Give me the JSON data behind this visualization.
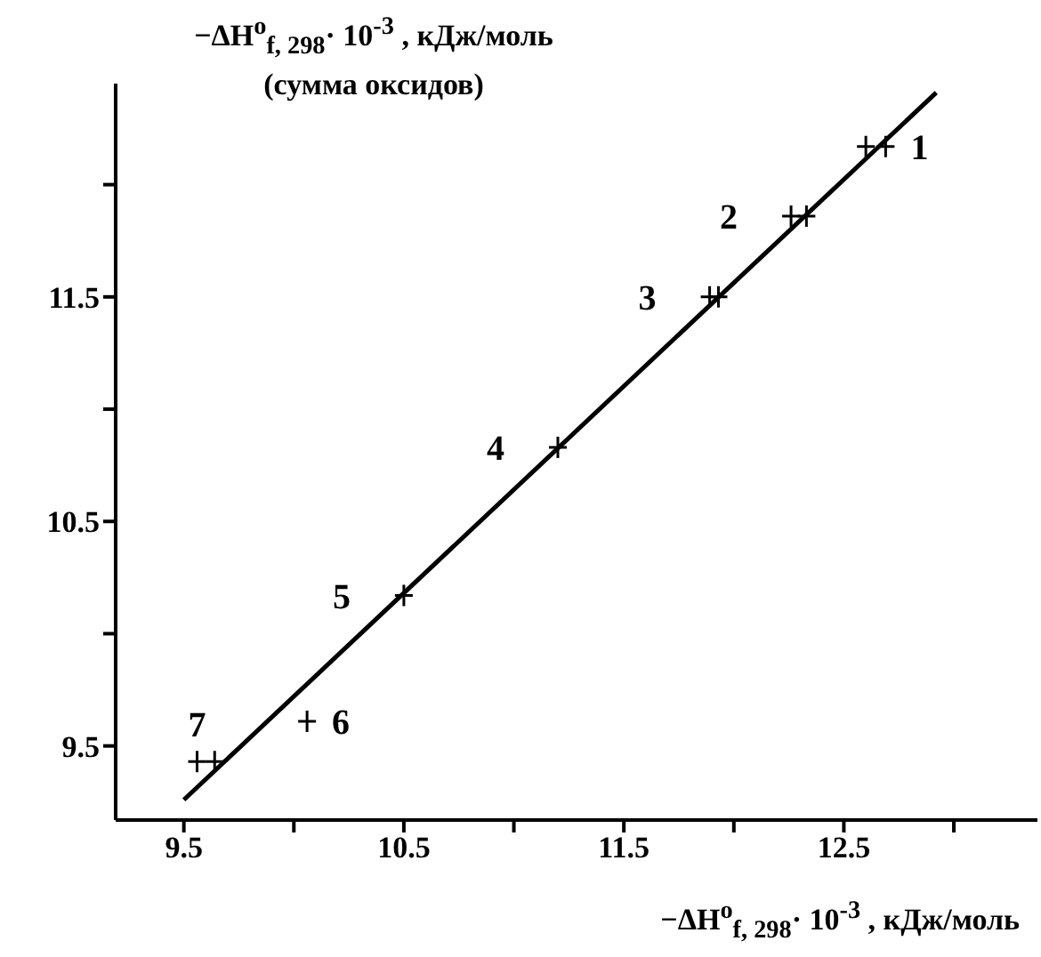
{
  "chart_data": {
    "type": "scatter",
    "xlabel": "−ΔH$^{o}$$_{f, 298}$· 10$^{-3}$ , кДж/моль",
    "ylabel": "−ΔH$^{o}$$_{f, 298}$· 10$^{-3}$ , кДж/моль\n(сумма оксидов)",
    "xlim": [
      9.19,
      13.38
    ],
    "ylim": [
      9.17,
      12.45
    ],
    "xticks": [
      9.5,
      {
        "value": 10,
        "label": null
      },
      10.5,
      {
        "value": 11,
        "label": null
      },
      11.5,
      {
        "value": 12,
        "label": null
      },
      12.5,
      {
        "value": 13,
        "label": null
      }
    ],
    "yticks": [
      9.5,
      {
        "value": 10,
        "label": null
      },
      10.5,
      {
        "value": 11,
        "label": null
      },
      11.5,
      {
        "value": 12,
        "label": null
      }
    ],
    "grid": false,
    "legend": false,
    "series": [
      {
        "marker": "cross",
        "color": "#000000",
        "x": [
          12.6,
          12.69,
          12.26,
          12.33,
          11.89,
          11.93,
          11.2,
          10.5,
          10.06,
          9.56,
          9.64
        ],
        "values": [
          12.17,
          12.17,
          11.86,
          11.86,
          11.5,
          11.5,
          10.83,
          10.17,
          9.61,
          9.43,
          9.43
        ]
      },
      {
        "type": "line",
        "color": "#000000",
        "x": [
          9.5,
          12.92
        ],
        "values": [
          9.26,
          12.41
        ],
        "line_style": "solid"
      }
    ],
    "annotations": [
      {
        "text": "1",
        "x": 12.69,
        "y": 12.17
      },
      {
        "text": "2",
        "x": 12.26,
        "y": 11.86
      },
      {
        "text": "3",
        "x": 11.89,
        "y": 11.5
      },
      {
        "text": "4",
        "x": 11.2,
        "y": 10.83
      },
      {
        "text": "5",
        "x": 10.5,
        "y": 10.17
      },
      {
        "text": "6",
        "x": 10.06,
        "y": 9.61
      },
      {
        "text": "7",
        "x": 9.56,
        "y": 9.43
      }
    ]
  }
}
